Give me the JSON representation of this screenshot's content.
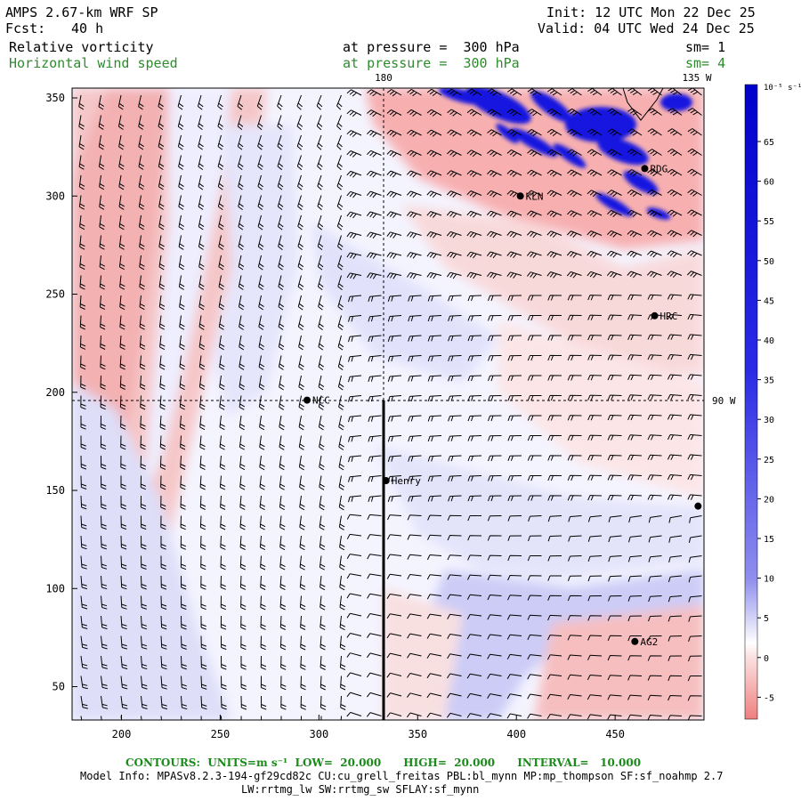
{
  "header": {
    "model": "AMPS 2.67-km WRF SP",
    "fcst_label": "Fcst:",
    "fcst_value": "40 h",
    "init": "Init: 12 UTC Mon 22 Dec 25",
    "valid": "Valid: 04 UTC Wed 24 Dec 25",
    "field1": {
      "name": "Relative vorticity",
      "level": "at pressure =  300 hPa",
      "sm": "sm= 1"
    },
    "field2": {
      "name": "Horizontal wind speed",
      "level": "at pressure =  300 hPa",
      "sm": "sm= 4"
    }
  },
  "map": {
    "x_ticks": [
      "200",
      "250",
      "300",
      "350",
      "400",
      "450"
    ],
    "y_ticks": [
      "50",
      "100",
      "150",
      "200",
      "250",
      "300",
      "350"
    ],
    "x_range": [
      175,
      495
    ],
    "y_range": [
      33,
      355
    ],
    "meridian_180": {
      "label": "180",
      "x": 334
    },
    "meridian_135w": {
      "label": "135 W"
    },
    "meridian_90w": {
      "label": "90 W",
      "y": 196
    },
    "stations": [
      {
        "name": "RDG",
        "x": 465,
        "y": 314
      },
      {
        "name": "KLN",
        "x": 402,
        "y": 300
      },
      {
        "name": "HRC",
        "x": 470,
        "y": 239
      },
      {
        "name": "NCC",
        "x": 294,
        "y": 196
      },
      {
        "name": "Henry",
        "x": 334,
        "y": 155
      },
      {
        "name": "AG2",
        "x": 460,
        "y": 73
      },
      {
        "name": "",
        "x": 492,
        "y": 142
      }
    ],
    "colors": {
      "positive": "#1010dd",
      "negative": "#f08080",
      "barb": "#000000",
      "dashed": "#000000"
    }
  },
  "colorbar": {
    "unit": "10⁻⁵ s⁻¹",
    "labels": [
      "65",
      "60",
      "55",
      "50",
      "45",
      "40",
      "35",
      "30",
      "25",
      "20",
      "15",
      "10",
      "5",
      "0",
      "-5"
    ]
  },
  "footer": {
    "contours": "CONTOURS:  UNITS=m s⁻¹  LOW=  20.000      HIGH=  20.000      INTERVAL=   10.000",
    "model_info": "Model Info: MPASv8.2.3-194-gf29cd82c CU:cu_grell_freitas PBL:bl_mynn MP:mp_thompson SF:sf_noahmp 2.7",
    "physics": "LW:rrtmg_lw SW:rrtmg_sw SFLAY:sf_mynn"
  }
}
